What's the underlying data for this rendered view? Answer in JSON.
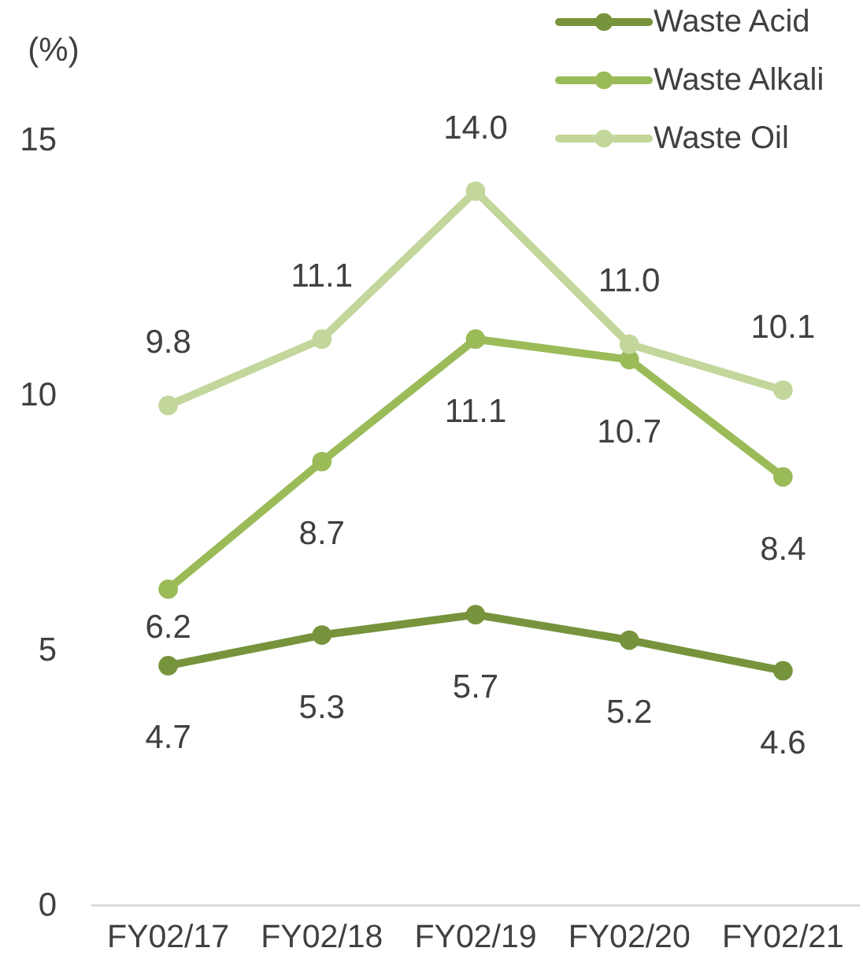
{
  "chart_data": {
    "type": "line",
    "ylabel": "(%)",
    "categories": [
      "FY02/17",
      "FY02/18",
      "FY02/19",
      "FY02/20",
      "FY02/21"
    ],
    "series": [
      {
        "name": "Waste Acid",
        "color": "#77933c",
        "values": [
          4.7,
          5.3,
          5.7,
          5.2,
          4.6
        ],
        "value_labels": [
          "4.7",
          "5.3",
          "5.7",
          "5.2",
          "4.6"
        ]
      },
      {
        "name": "Waste Alkali",
        "color": "#9bbb59",
        "values": [
          6.2,
          8.7,
          11.1,
          10.7,
          8.4
        ],
        "value_labels": [
          "6.2",
          "8.7",
          "11.1",
          "10.7",
          "8.4"
        ]
      },
      {
        "name": "Waste Oil",
        "color": "#c3d69b",
        "values": [
          9.8,
          11.1,
          14.0,
          11.0,
          10.1
        ],
        "value_labels": [
          "9.8",
          "11.1",
          "14.0",
          "11.0",
          "10.1"
        ]
      }
    ],
    "ylim": [
      0,
      15
    ],
    "yticks": [
      0,
      5,
      10,
      15
    ],
    "legend": "top right",
    "marker": "circle",
    "line_style": "solid"
  }
}
